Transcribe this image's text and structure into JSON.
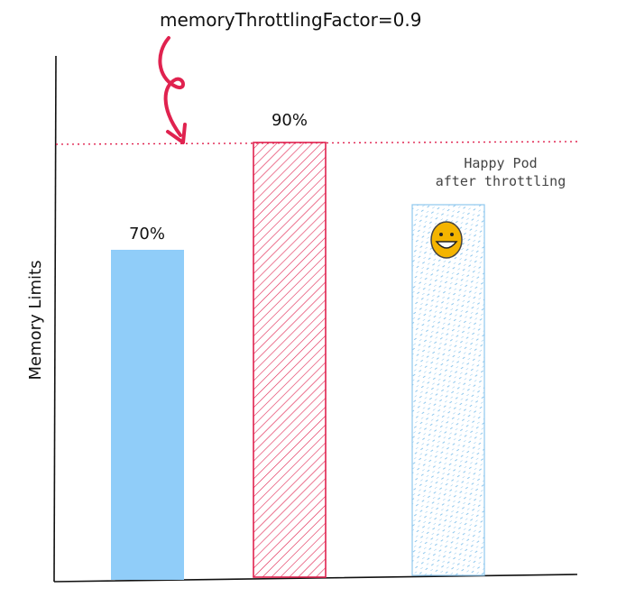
{
  "annotation": "memoryThrottlingFactor=0.9",
  "y_axis_label": "Memory Limits",
  "bars": [
    {
      "label": "70%",
      "value": 70,
      "style": "solid",
      "color": "#90cdf9"
    },
    {
      "label": "90%",
      "value": 90,
      "style": "hatched",
      "color": "#e0224f"
    },
    {
      "label": "",
      "value": 76,
      "style": "dotted",
      "color": "#8fc8ee"
    }
  ],
  "happy_pod": {
    "line1": "Happy Pod",
    "line2": "after throttling"
  },
  "colors": {
    "threshold_line": "#e0224f",
    "arrow": "#e0224f",
    "smiley_fill": "#f4b400",
    "smiley_stroke": "#444444"
  },
  "icons": {
    "arrow": "curved-arrow-icon",
    "smiley": "smiley-face-icon"
  }
}
